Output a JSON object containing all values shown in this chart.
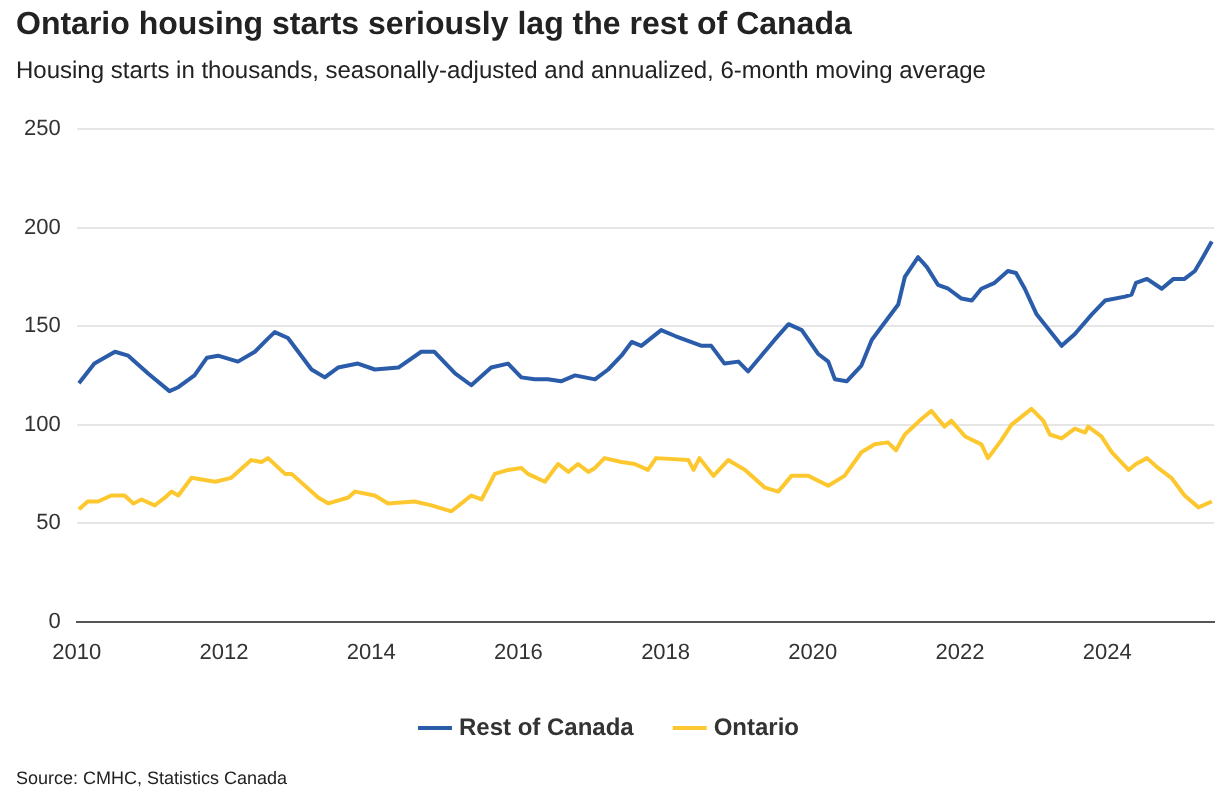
{
  "chart_data": {
    "type": "line",
    "title": "Ontario housing starts seriously lag the rest of Canada",
    "subtitle": "Housing starts in thousands, seasonally-adjusted and annualized, 6-month moving average",
    "xlim": [
      2010,
      2025.45
    ],
    "xticks": [
      2010,
      2012,
      2014,
      2016,
      2018,
      2020,
      2022,
      2024
    ],
    "ylim": [
      0,
      250
    ],
    "yticks": [
      0,
      50,
      100,
      150,
      200,
      250
    ],
    "grid": "y",
    "legend": "bottom",
    "marker": "none",
    "line_style": "solid",
    "annotations": [
      "Source: CMHC, Statistics Canada"
    ],
    "series": [
      {
        "name": "Rest of Canada",
        "color": "#2a5caa",
        "x": [
          2010.03,
          2010.24,
          2010.52,
          2010.7,
          2010.97,
          2011.26,
          2011.38,
          2011.6,
          2011.77,
          2011.92,
          2012.19,
          2012.42,
          2012.58,
          2012.69,
          2012.87,
          2013.19,
          2013.37,
          2013.55,
          2013.82,
          2014.05,
          2014.37,
          2014.68,
          2014.86,
          2015.14,
          2015.36,
          2015.63,
          2015.86,
          2016.04,
          2016.22,
          2016.4,
          2016.58,
          2016.77,
          2017.04,
          2017.22,
          2017.4,
          2017.54,
          2017.67,
          2017.94,
          2018.13,
          2018.49,
          2018.62,
          2018.8,
          2018.99,
          2019.12,
          2019.3,
          2019.48,
          2019.67,
          2019.85,
          2020.07,
          2020.21,
          2020.3,
          2020.46,
          2020.66,
          2020.8,
          2021.02,
          2021.16,
          2021.25,
          2021.43,
          2021.55,
          2021.7,
          2021.84,
          2022.02,
          2022.16,
          2022.29,
          2022.47,
          2022.65,
          2022.76,
          2022.88,
          2023.04,
          2023.38,
          2023.56,
          2023.79,
          2023.97,
          2024.24,
          2024.33,
          2024.39,
          2024.54,
          2024.74,
          2024.9,
          2025.05,
          2025.19,
          2025.3,
          2025.42
        ],
        "values": [
          121,
          131,
          137,
          135,
          126,
          117,
          119,
          125,
          134,
          135,
          132,
          137,
          143,
          147,
          144,
          128,
          124,
          129,
          131,
          128,
          129,
          137,
          137,
          126,
          120,
          129,
          131,
          124,
          123,
          123,
          122,
          125,
          123,
          128,
          135,
          142,
          140,
          148,
          145,
          140,
          140,
          131,
          132,
          127,
          135,
          143,
          151,
          148,
          136,
          132,
          123,
          122,
          130,
          143,
          154,
          161,
          175,
          185,
          180,
          171,
          169,
          164,
          163,
          169,
          172,
          178,
          177,
          169,
          156,
          140,
          146,
          156,
          163,
          165,
          166,
          172,
          174,
          169,
          174,
          174,
          178,
          185,
          193
        ]
      },
      {
        "name": "Ontario",
        "color": "#fdc82f",
        "x": [
          2010.03,
          2010.15,
          2010.29,
          2010.47,
          2010.65,
          2010.77,
          2010.88,
          2011.06,
          2011.2,
          2011.29,
          2011.38,
          2011.56,
          2011.88,
          2012.1,
          2012.37,
          2012.51,
          2012.6,
          2012.83,
          2012.92,
          2013.28,
          2013.42,
          2013.69,
          2013.78,
          2014.05,
          2014.23,
          2014.59,
          2014.82,
          2015.09,
          2015.36,
          2015.5,
          2015.68,
          2015.86,
          2016.04,
          2016.13,
          2016.36,
          2016.54,
          2016.68,
          2016.81,
          2016.95,
          2017.04,
          2017.17,
          2017.4,
          2017.58,
          2017.76,
          2017.87,
          2018.31,
          2018.38,
          2018.46,
          2018.65,
          2018.85,
          2019.08,
          2019.35,
          2019.53,
          2019.71,
          2019.94,
          2020.21,
          2020.43,
          2020.66,
          2020.84,
          2021.02,
          2021.13,
          2021.25,
          2021.48,
          2021.61,
          2021.79,
          2021.88,
          2022.07,
          2022.29,
          2022.38,
          2022.56,
          2022.7,
          2022.97,
          2023.13,
          2023.22,
          2023.38,
          2023.56,
          2023.7,
          2023.74,
          2023.92,
          2024.06,
          2024.29,
          2024.39,
          2024.54,
          2024.69,
          2024.87,
          2025.05,
          2025.24,
          2025.42
        ],
        "values": [
          57,
          61,
          61,
          64,
          64,
          60,
          62,
          59,
          63,
          66,
          64,
          73,
          71,
          73,
          82,
          81,
          83,
          75,
          75,
          63,
          60,
          63,
          66,
          64,
          60,
          61,
          59,
          56,
          64,
          62,
          75,
          77,
          78,
          75,
          71,
          80,
          76,
          80,
          76,
          78,
          83,
          81,
          80,
          77,
          83,
          82,
          77,
          83,
          74,
          82,
          77,
          68,
          66,
          74,
          74,
          69,
          74,
          86,
          90,
          91,
          87,
          95,
          103,
          107,
          99,
          102,
          94,
          90,
          83,
          92,
          100,
          108,
          102,
          95,
          93,
          98,
          96,
          99,
          94,
          86,
          77,
          80,
          83,
          78,
          73,
          64,
          58,
          61
        ]
      }
    ]
  }
}
